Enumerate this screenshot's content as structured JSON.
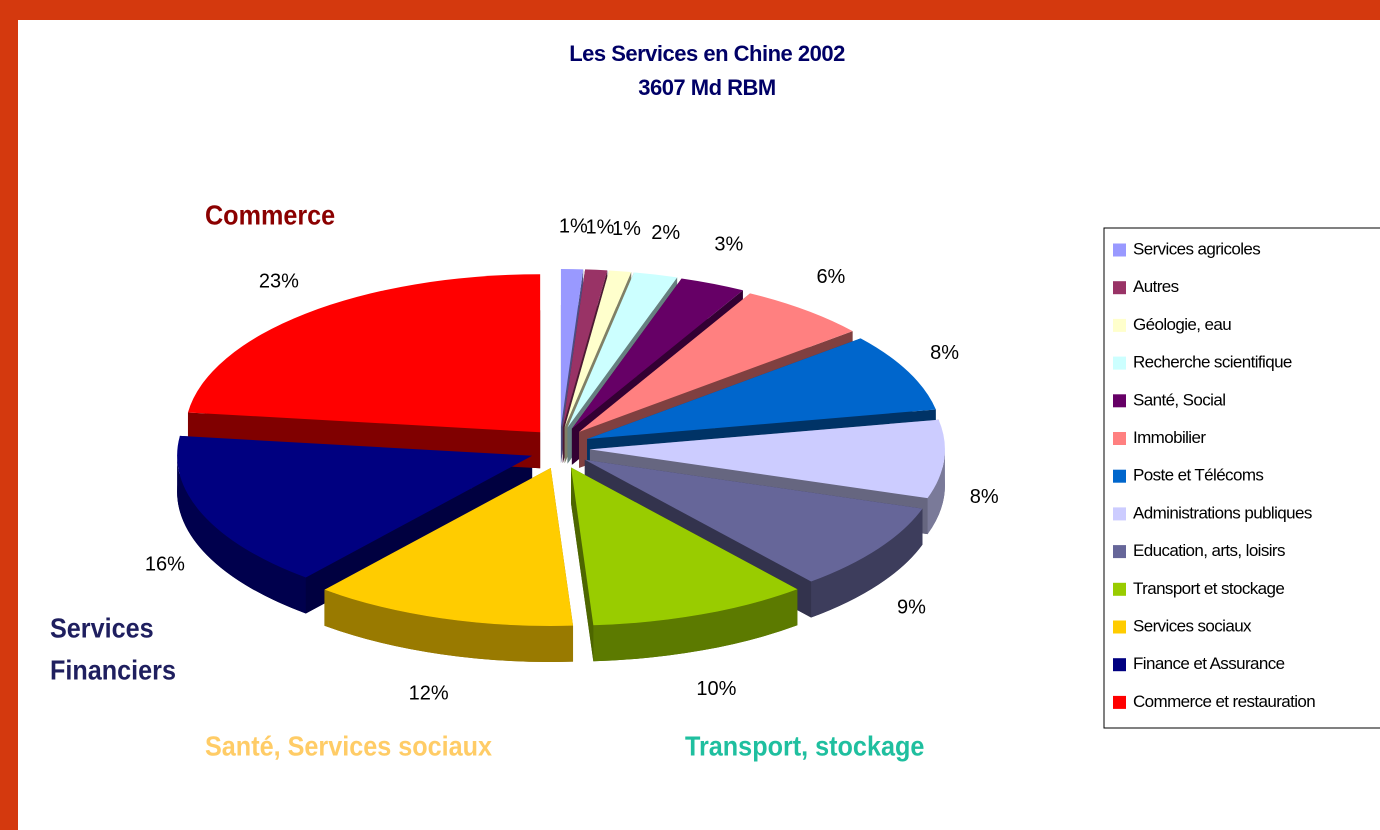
{
  "chart_data": {
    "type": "pie",
    "title": "Les Services en Chine  2002",
    "subtitle": "3607 Md RBM",
    "categories": [
      "Services agricoles",
      "Autres",
      "Géologie, eau",
      "Recherche scientifique",
      "Santé, Social",
      "Immobilier",
      "Poste et Télécoms",
      "Administrations publiques",
      "Education, arts, loisirs",
      "Transport et stockage",
      "Services sociaux",
      "Finance et Assurance",
      "Commerce et restauration"
    ],
    "values": [
      1,
      1,
      1,
      2,
      3,
      6,
      8,
      8,
      9,
      10,
      12,
      16,
      23
    ],
    "value_labels": [
      "1%",
      "1%",
      "1%",
      "2%",
      "3%",
      "6%",
      "8%",
      "8%",
      "9%",
      "10%",
      "12%",
      "16%",
      "23%"
    ],
    "colors": [
      "#9999ff",
      "#993366",
      "#ffffcc",
      "#ccffff",
      "#660066",
      "#ff8080",
      "#0066cc",
      "#ccccff",
      "#666699",
      "#99cc00",
      "#ffcc00",
      "#000080",
      "#ff0000"
    ],
    "legend": "right",
    "annotations": [
      {
        "lines": [
          "Commerce"
        ],
        "color": "#8b0000"
      },
      {
        "lines": [
          "Services",
          "Financiers"
        ],
        "color": "#1f1f5f"
      },
      {
        "lines": [
          "Santé, Services sociaux"
        ],
        "color": "#ffcc66"
      },
      {
        "lines": [
          "Transport, stockage"
        ],
        "color": "#1fbf9f"
      }
    ]
  }
}
